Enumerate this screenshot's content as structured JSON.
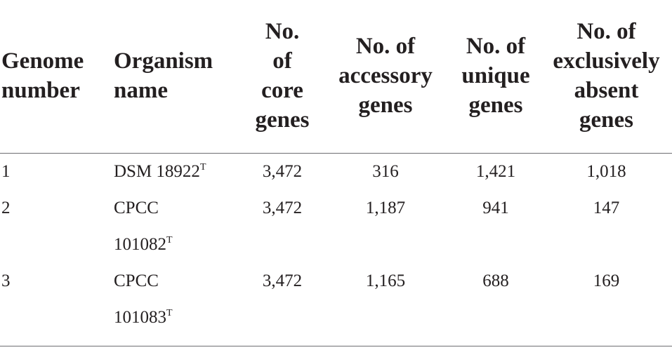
{
  "table": {
    "headers": [
      "Genome number",
      "Organism name",
      "No. of core genes",
      "No. of accessory genes",
      "No. of unique genes",
      "No. of exclusively absent genes"
    ],
    "header_lines": [
      [
        "Genome",
        "number"
      ],
      [
        "Organism",
        "name"
      ],
      [
        "No.",
        "of",
        "core",
        "genes"
      ],
      [
        "No. of",
        "accessory",
        "genes"
      ],
      [
        "No. of",
        "unique",
        "genes"
      ],
      [
        "No. of",
        "exclusively",
        "absent",
        "genes"
      ]
    ],
    "rows": [
      {
        "genome_number": "1",
        "organism_lines": [
          "DSM 18922"
        ],
        "organism_sup": "T",
        "core": "3,472",
        "accessory": "316",
        "unique": "1,421",
        "absent": "1,018"
      },
      {
        "genome_number": "2",
        "organism_lines": [
          "CPCC",
          "101082"
        ],
        "organism_sup": "T",
        "core": "3,472",
        "accessory": "1,187",
        "unique": "941",
        "absent": "147"
      },
      {
        "genome_number": "3",
        "organism_lines": [
          "CPCC",
          "101083"
        ],
        "organism_sup": "T",
        "core": "3,472",
        "accessory": "1,165",
        "unique": "688",
        "absent": "169"
      }
    ]
  }
}
